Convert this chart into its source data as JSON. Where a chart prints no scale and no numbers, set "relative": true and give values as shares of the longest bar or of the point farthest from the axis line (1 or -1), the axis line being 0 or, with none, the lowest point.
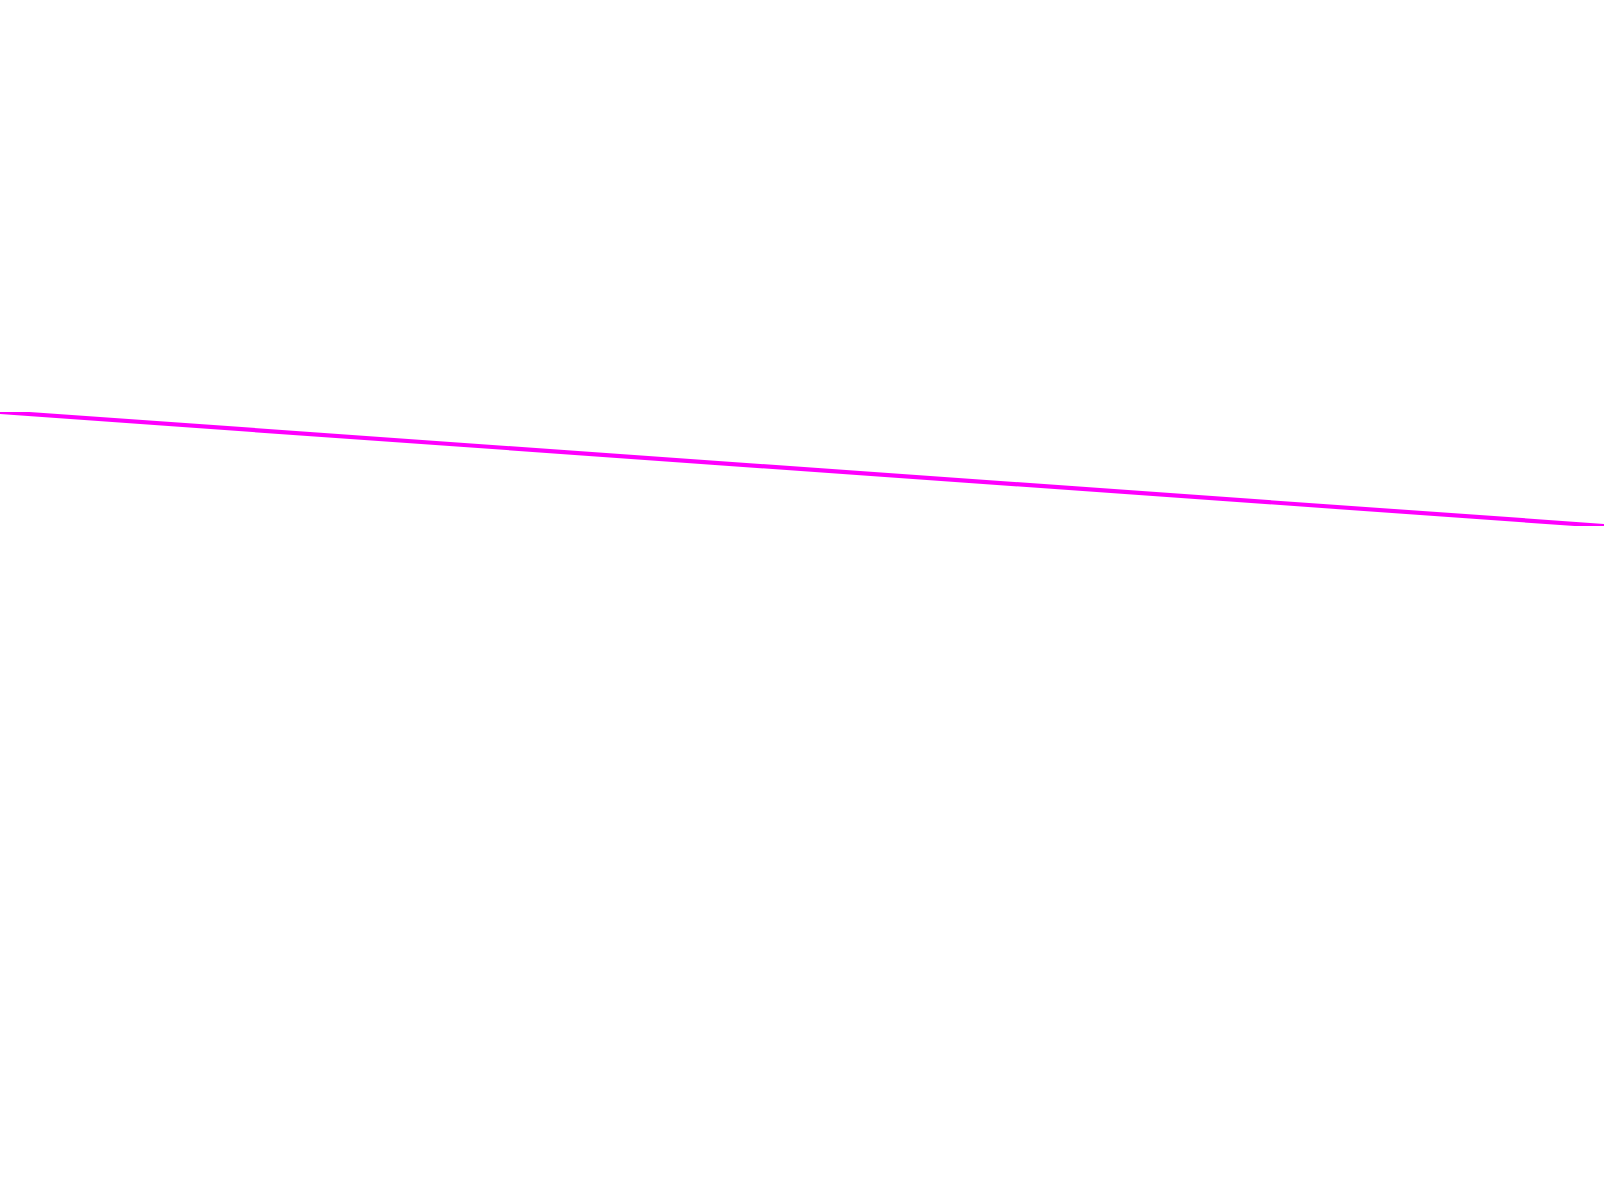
{
  "chart_data": {
    "type": "line",
    "relative": true,
    "categories": [
      null,
      null
    ],
    "series": [
      {
        "color": "#ff00ff",
        "values": [
          1,
          0
        ]
      }
    ]
  }
}
